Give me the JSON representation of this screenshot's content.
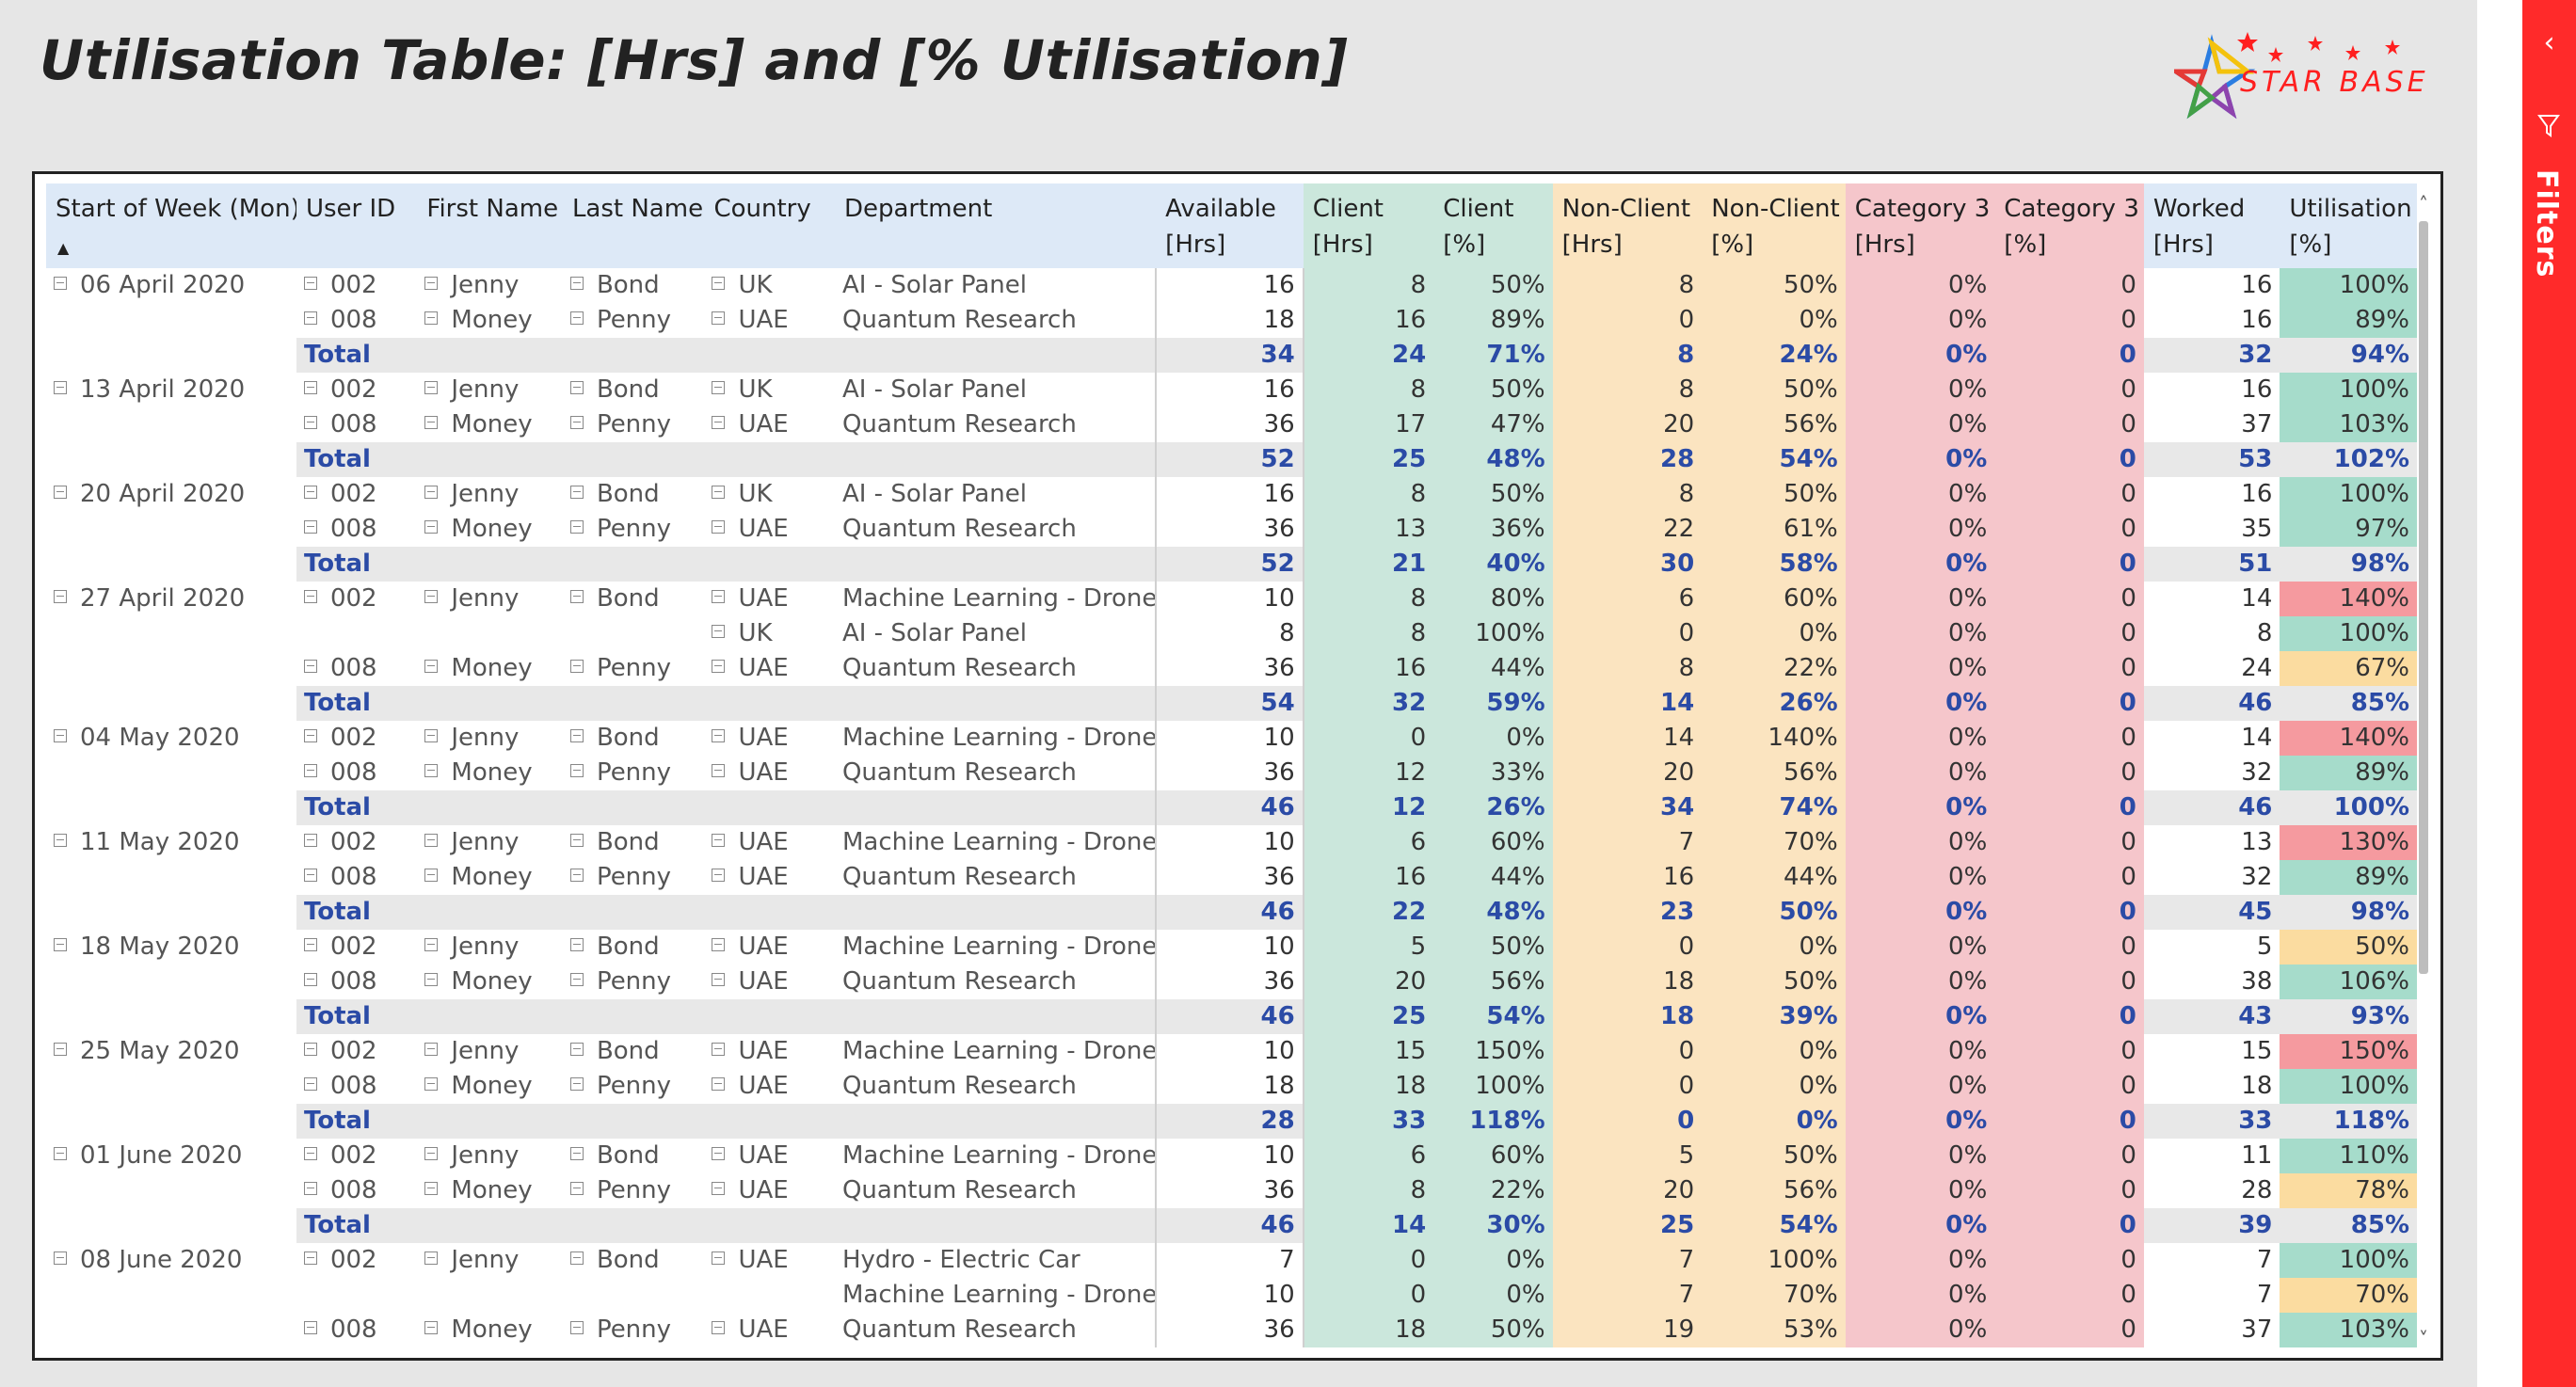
{
  "page": {
    "title": "Utilisation Table: [Hrs] and [% Utilisation]"
  },
  "logo": {
    "text": "STAR BASE"
  },
  "filters_pane": {
    "label": "Filters",
    "chevron": "‹"
  },
  "table": {
    "headers": [
      {
        "line1": "Start of Week (Mon)",
        "line2": ""
      },
      {
        "line1": "User ID",
        "line2": ""
      },
      {
        "line1": "First Name",
        "line2": ""
      },
      {
        "line1": "Last Name",
        "line2": ""
      },
      {
        "line1": "Country",
        "line2": ""
      },
      {
        "line1": "Department",
        "line2": ""
      },
      {
        "line1": "Available",
        "line2": "[Hrs]"
      },
      {
        "line1": "Client",
        "line2": "[Hrs]"
      },
      {
        "line1": "Client",
        "line2": "[%]"
      },
      {
        "line1": "Non-Client",
        "line2": "[Hrs]"
      },
      {
        "line1": "Non-Client",
        "line2": "[%]"
      },
      {
        "line1": "Category 3",
        "line2": "[Hrs]"
      },
      {
        "line1": "Category 3",
        "line2": "[%]"
      },
      {
        "line1": "Worked",
        "line2": "[Hrs]"
      },
      {
        "line1": "Utilisation",
        "line2": "[%]"
      }
    ],
    "sort_indicator": "▲",
    "total_label": "Total",
    "rows": [
      {
        "type": "data",
        "week": "06 April 2020",
        "uid": "002",
        "first": "Jenny",
        "last": "Bond",
        "country": "UK",
        "dept": "AI - Solar Panel",
        "avail": "16",
        "client_hrs": "8",
        "client_pct": "50%",
        "nc_hrs": "8",
        "nc_pct": "50%",
        "c3_hrs": "0%",
        "c3_pct": "0",
        "worked": "16",
        "util": "100%",
        "util_status": "green"
      },
      {
        "type": "data",
        "week": "",
        "uid": "008",
        "first": "Money",
        "last": "Penny",
        "country": "UAE",
        "dept": "Quantum Research",
        "avail": "18",
        "client_hrs": "16",
        "client_pct": "89%",
        "nc_hrs": "0",
        "nc_pct": "0%",
        "c3_hrs": "0%",
        "c3_pct": "0",
        "worked": "16",
        "util": "89%",
        "util_status": "green"
      },
      {
        "type": "total",
        "avail": "34",
        "client_hrs": "24",
        "client_pct": "71%",
        "nc_hrs": "8",
        "nc_pct": "24%",
        "c3_hrs": "0%",
        "c3_pct": "0",
        "worked": "32",
        "util": "94%"
      },
      {
        "type": "data",
        "week": "13 April 2020",
        "uid": "002",
        "first": "Jenny",
        "last": "Bond",
        "country": "UK",
        "dept": "AI - Solar Panel",
        "avail": "16",
        "client_hrs": "8",
        "client_pct": "50%",
        "nc_hrs": "8",
        "nc_pct": "50%",
        "c3_hrs": "0%",
        "c3_pct": "0",
        "worked": "16",
        "util": "100%",
        "util_status": "green"
      },
      {
        "type": "data",
        "week": "",
        "uid": "008",
        "first": "Money",
        "last": "Penny",
        "country": "UAE",
        "dept": "Quantum Research",
        "avail": "36",
        "client_hrs": "17",
        "client_pct": "47%",
        "nc_hrs": "20",
        "nc_pct": "56%",
        "c3_hrs": "0%",
        "c3_pct": "0",
        "worked": "37",
        "util": "103%",
        "util_status": "green"
      },
      {
        "type": "total",
        "avail": "52",
        "client_hrs": "25",
        "client_pct": "48%",
        "nc_hrs": "28",
        "nc_pct": "54%",
        "c3_hrs": "0%",
        "c3_pct": "0",
        "worked": "53",
        "util": "102%"
      },
      {
        "type": "data",
        "week": "20 April 2020",
        "uid": "002",
        "first": "Jenny",
        "last": "Bond",
        "country": "UK",
        "dept": "AI - Solar Panel",
        "avail": "16",
        "client_hrs": "8",
        "client_pct": "50%",
        "nc_hrs": "8",
        "nc_pct": "50%",
        "c3_hrs": "0%",
        "c3_pct": "0",
        "worked": "16",
        "util": "100%",
        "util_status": "green"
      },
      {
        "type": "data",
        "week": "",
        "uid": "008",
        "first": "Money",
        "last": "Penny",
        "country": "UAE",
        "dept": "Quantum Research",
        "avail": "36",
        "client_hrs": "13",
        "client_pct": "36%",
        "nc_hrs": "22",
        "nc_pct": "61%",
        "c3_hrs": "0%",
        "c3_pct": "0",
        "worked": "35",
        "util": "97%",
        "util_status": "green"
      },
      {
        "type": "total",
        "avail": "52",
        "client_hrs": "21",
        "client_pct": "40%",
        "nc_hrs": "30",
        "nc_pct": "58%",
        "c3_hrs": "0%",
        "c3_pct": "0",
        "worked": "51",
        "util": "98%"
      },
      {
        "type": "data",
        "week": "27 April 2020",
        "uid": "002",
        "first": "Jenny",
        "last": "Bond",
        "country": "UAE",
        "dept": "Machine Learning - Drone",
        "avail": "10",
        "client_hrs": "8",
        "client_pct": "80%",
        "nc_hrs": "6",
        "nc_pct": "60%",
        "c3_hrs": "0%",
        "c3_pct": "0",
        "worked": "14",
        "util": "140%",
        "util_status": "red"
      },
      {
        "type": "data",
        "week": "",
        "uid": "",
        "first": "",
        "last": "",
        "country": "UK",
        "dept": "AI - Solar Panel",
        "avail": "8",
        "client_hrs": "8",
        "client_pct": "100%",
        "nc_hrs": "0",
        "nc_pct": "0%",
        "c3_hrs": "0%",
        "c3_pct": "0",
        "worked": "8",
        "util": "100%",
        "util_status": "green"
      },
      {
        "type": "data",
        "week": "",
        "uid": "008",
        "first": "Money",
        "last": "Penny",
        "country": "UAE",
        "dept": "Quantum Research",
        "avail": "36",
        "client_hrs": "16",
        "client_pct": "44%",
        "nc_hrs": "8",
        "nc_pct": "22%",
        "c3_hrs": "0%",
        "c3_pct": "0",
        "worked": "24",
        "util": "67%",
        "util_status": "amber"
      },
      {
        "type": "total",
        "avail": "54",
        "client_hrs": "32",
        "client_pct": "59%",
        "nc_hrs": "14",
        "nc_pct": "26%",
        "c3_hrs": "0%",
        "c3_pct": "0",
        "worked": "46",
        "util": "85%"
      },
      {
        "type": "data",
        "week": "04 May 2020",
        "uid": "002",
        "first": "Jenny",
        "last": "Bond",
        "country": "UAE",
        "dept": "Machine Learning - Drone",
        "avail": "10",
        "client_hrs": "0",
        "client_pct": "0%",
        "nc_hrs": "14",
        "nc_pct": "140%",
        "c3_hrs": "0%",
        "c3_pct": "0",
        "worked": "14",
        "util": "140%",
        "util_status": "red"
      },
      {
        "type": "data",
        "week": "",
        "uid": "008",
        "first": "Money",
        "last": "Penny",
        "country": "UAE",
        "dept": "Quantum Research",
        "avail": "36",
        "client_hrs": "12",
        "client_pct": "33%",
        "nc_hrs": "20",
        "nc_pct": "56%",
        "c3_hrs": "0%",
        "c3_pct": "0",
        "worked": "32",
        "util": "89%",
        "util_status": "green"
      },
      {
        "type": "total",
        "avail": "46",
        "client_hrs": "12",
        "client_pct": "26%",
        "nc_hrs": "34",
        "nc_pct": "74%",
        "c3_hrs": "0%",
        "c3_pct": "0",
        "worked": "46",
        "util": "100%"
      },
      {
        "type": "data",
        "week": "11 May 2020",
        "uid": "002",
        "first": "Jenny",
        "last": "Bond",
        "country": "UAE",
        "dept": "Machine Learning - Drone",
        "avail": "10",
        "client_hrs": "6",
        "client_pct": "60%",
        "nc_hrs": "7",
        "nc_pct": "70%",
        "c3_hrs": "0%",
        "c3_pct": "0",
        "worked": "13",
        "util": "130%",
        "util_status": "red"
      },
      {
        "type": "data",
        "week": "",
        "uid": "008",
        "first": "Money",
        "last": "Penny",
        "country": "UAE",
        "dept": "Quantum Research",
        "avail": "36",
        "client_hrs": "16",
        "client_pct": "44%",
        "nc_hrs": "16",
        "nc_pct": "44%",
        "c3_hrs": "0%",
        "c3_pct": "0",
        "worked": "32",
        "util": "89%",
        "util_status": "green"
      },
      {
        "type": "total",
        "avail": "46",
        "client_hrs": "22",
        "client_pct": "48%",
        "nc_hrs": "23",
        "nc_pct": "50%",
        "c3_hrs": "0%",
        "c3_pct": "0",
        "worked": "45",
        "util": "98%"
      },
      {
        "type": "data",
        "week": "18 May 2020",
        "uid": "002",
        "first": "Jenny",
        "last": "Bond",
        "country": "UAE",
        "dept": "Machine Learning - Drone",
        "avail": "10",
        "client_hrs": "5",
        "client_pct": "50%",
        "nc_hrs": "0",
        "nc_pct": "0%",
        "c3_hrs": "0%",
        "c3_pct": "0",
        "worked": "5",
        "util": "50%",
        "util_status": "amber"
      },
      {
        "type": "data",
        "week": "",
        "uid": "008",
        "first": "Money",
        "last": "Penny",
        "country": "UAE",
        "dept": "Quantum Research",
        "avail": "36",
        "client_hrs": "20",
        "client_pct": "56%",
        "nc_hrs": "18",
        "nc_pct": "50%",
        "c3_hrs": "0%",
        "c3_pct": "0",
        "worked": "38",
        "util": "106%",
        "util_status": "green"
      },
      {
        "type": "total",
        "avail": "46",
        "client_hrs": "25",
        "client_pct": "54%",
        "nc_hrs": "18",
        "nc_pct": "39%",
        "c3_hrs": "0%",
        "c3_pct": "0",
        "worked": "43",
        "util": "93%"
      },
      {
        "type": "data",
        "week": "25 May 2020",
        "uid": "002",
        "first": "Jenny",
        "last": "Bond",
        "country": "UAE",
        "dept": "Machine Learning - Drone",
        "avail": "10",
        "client_hrs": "15",
        "client_pct": "150%",
        "nc_hrs": "0",
        "nc_pct": "0%",
        "c3_hrs": "0%",
        "c3_pct": "0",
        "worked": "15",
        "util": "150%",
        "util_status": "red"
      },
      {
        "type": "data",
        "week": "",
        "uid": "008",
        "first": "Money",
        "last": "Penny",
        "country": "UAE",
        "dept": "Quantum Research",
        "avail": "18",
        "client_hrs": "18",
        "client_pct": "100%",
        "nc_hrs": "0",
        "nc_pct": "0%",
        "c3_hrs": "0%",
        "c3_pct": "0",
        "worked": "18",
        "util": "100%",
        "util_status": "green"
      },
      {
        "type": "total",
        "avail": "28",
        "client_hrs": "33",
        "client_pct": "118%",
        "nc_hrs": "0",
        "nc_pct": "0%",
        "c3_hrs": "0%",
        "c3_pct": "0",
        "worked": "33",
        "util": "118%"
      },
      {
        "type": "data",
        "week": "01 June 2020",
        "uid": "002",
        "first": "Jenny",
        "last": "Bond",
        "country": "UAE",
        "dept": "Machine Learning - Drone",
        "avail": "10",
        "client_hrs": "6",
        "client_pct": "60%",
        "nc_hrs": "5",
        "nc_pct": "50%",
        "c3_hrs": "0%",
        "c3_pct": "0",
        "worked": "11",
        "util": "110%",
        "util_status": "green"
      },
      {
        "type": "data",
        "week": "",
        "uid": "008",
        "first": "Money",
        "last": "Penny",
        "country": "UAE",
        "dept": "Quantum Research",
        "avail": "36",
        "client_hrs": "8",
        "client_pct": "22%",
        "nc_hrs": "20",
        "nc_pct": "56%",
        "c3_hrs": "0%",
        "c3_pct": "0",
        "worked": "28",
        "util": "78%",
        "util_status": "amber"
      },
      {
        "type": "total",
        "avail": "46",
        "client_hrs": "14",
        "client_pct": "30%",
        "nc_hrs": "25",
        "nc_pct": "54%",
        "c3_hrs": "0%",
        "c3_pct": "0",
        "worked": "39",
        "util": "85%"
      },
      {
        "type": "data",
        "week": "08 June 2020",
        "uid": "002",
        "first": "Jenny",
        "last": "Bond",
        "country": "UAE",
        "dept": "Hydro - Electric Car",
        "avail": "7",
        "client_hrs": "0",
        "client_pct": "0%",
        "nc_hrs": "7",
        "nc_pct": "100%",
        "c3_hrs": "0%",
        "c3_pct": "0",
        "worked": "7",
        "util": "100%",
        "util_status": "green"
      },
      {
        "type": "data",
        "week": "",
        "uid": "",
        "first": "",
        "last": "",
        "country": "",
        "dept": "Machine Learning - Drone",
        "avail": "10",
        "client_hrs": "0",
        "client_pct": "0%",
        "nc_hrs": "7",
        "nc_pct": "70%",
        "c3_hrs": "0%",
        "c3_pct": "0",
        "worked": "7",
        "util": "70%",
        "util_status": "amber"
      },
      {
        "type": "data",
        "week": "",
        "uid": "008",
        "first": "Money",
        "last": "Penny",
        "country": "UAE",
        "dept": "Quantum Research",
        "avail": "36",
        "client_hrs": "18",
        "client_pct": "50%",
        "nc_hrs": "19",
        "nc_pct": "53%",
        "c3_hrs": "0%",
        "c3_pct": "0",
        "worked": "37",
        "util": "103%",
        "util_status": "green"
      }
    ]
  },
  "colors": {
    "filters_pane": "#ff2a2a",
    "header_bg": "#dde9f7",
    "client_bg": "#cbe7dc",
    "nonclient_bg": "#fbe4c0",
    "category3_bg": "#f5c6cb",
    "util_green": "#a6dccb",
    "util_red": "#f59a9f",
    "util_amber": "#fbdca0",
    "total_text": "#2b4ba6"
  }
}
